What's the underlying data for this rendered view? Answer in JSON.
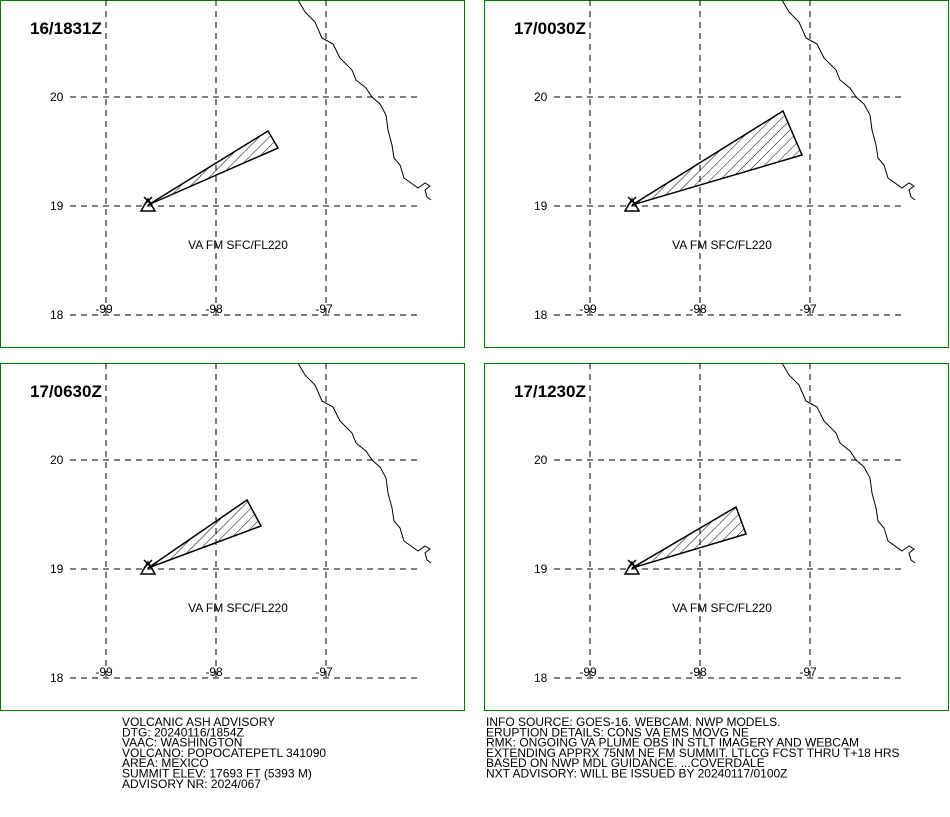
{
  "panels": [
    {
      "time": "16/1831Z",
      "label": "VA FM SFC/FL220",
      "lon_ticks": [
        -99,
        -98,
        -97
      ],
      "lat_ticks": [
        20,
        19,
        18
      ]
    },
    {
      "time": "17/0030Z",
      "label": "VA FM SFC/FL220",
      "lon_ticks": [
        -99,
        -98,
        -97
      ],
      "lat_ticks": [
        20,
        19,
        18
      ]
    },
    {
      "time": "17/0630Z",
      "label": "VA FM SFC/FL220",
      "lon_ticks": [
        -99,
        -98,
        -97
      ],
      "lat_ticks": [
        20,
        19,
        18
      ]
    },
    {
      "time": "17/1230Z",
      "label": "VA FM SFC/FL220",
      "lon_ticks": [
        -99,
        -98,
        -97
      ],
      "lat_ticks": [
        20,
        19,
        18
      ]
    }
  ],
  "advisory_left": [
    "VOLCANIC ASH ADVISORY",
    "DTG: 20240116/1854Z",
    "VAAC: WASHINGTON",
    "VOLCANO: POPOCATEPETL 341090",
    "AREA: MEXICO",
    "SUMMIT ELEV: 17693 FT (5393 M)",
    "ADVISORY NR: 2024/067"
  ],
  "advisory_right": [
    "INFO SOURCE: GOES-16. WEBCAM. NWP MODELS.",
    "ERUPTION DETAILS: CONS VA EMS MOVG NE",
    "RMK: ONGOING VA PLUME OBS IN STLT IMAGERY AND WEBCAM",
    "EXTENDING APPRX 75NM NE FM SUMMIT. LTLCG FCST THRU T+18 HRS",
    "BASED ON NWP MDL GUIDANCE. ...COVERDALE",
    "NXT ADVISORY: WILL BE ISSUED BY 20240117/0100Z"
  ]
}
